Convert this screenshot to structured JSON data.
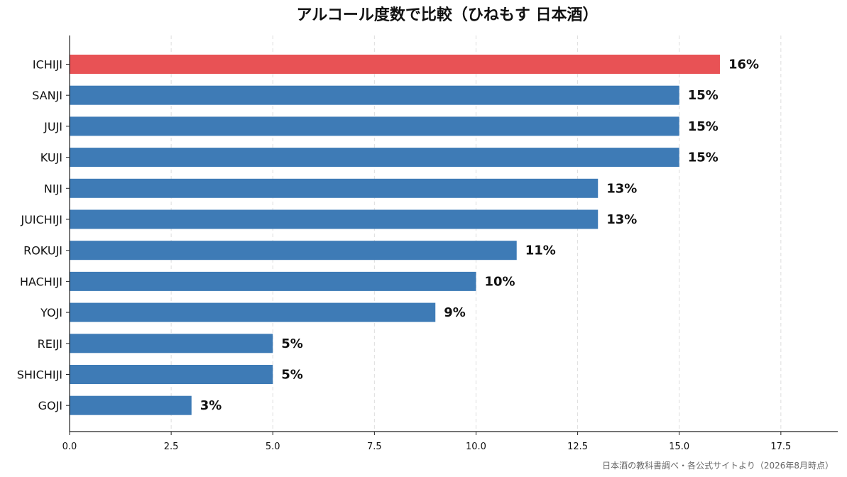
{
  "chart_data": {
    "type": "bar",
    "orientation": "horizontal",
    "title": "アルコール度数で比較（ひねもす 日本酒）",
    "xlabel": "",
    "ylabel": "",
    "categories": [
      "ICHIJI",
      "SANJI",
      "JUJI",
      "KUJI",
      "NIJI",
      "JUICHIJI",
      "ROKUJI",
      "HACHIJI",
      "YOJI",
      "REIJI",
      "SHICHIJI",
      "GOJI"
    ],
    "values": [
      16,
      15,
      15,
      15,
      13,
      13,
      11,
      10,
      9,
      5,
      5,
      3
    ],
    "value_labels": [
      "16%",
      "15%",
      "15%",
      "15%",
      "13%",
      "13%",
      "11%",
      "10%",
      "9%",
      "5%",
      "5%",
      "3%"
    ],
    "highlight_index": 0,
    "xlim": [
      0,
      18.9
    ],
    "xticks": [
      0.0,
      2.5,
      5.0,
      7.5,
      10.0,
      12.5,
      15.0,
      17.5
    ],
    "xtick_labels": [
      "0.0",
      "2.5",
      "5.0",
      "7.5",
      "10.0",
      "12.5",
      "15.0",
      "17.5"
    ],
    "grid": "x-dashed",
    "colors": {
      "bar": "#3e7bb6",
      "highlight": "#e85255",
      "grid": "#dddddd",
      "axis": "#222222",
      "source": "#666666"
    },
    "source": "日本酒の教科書調べ・各公式サイトより（2026年8月時点）"
  }
}
